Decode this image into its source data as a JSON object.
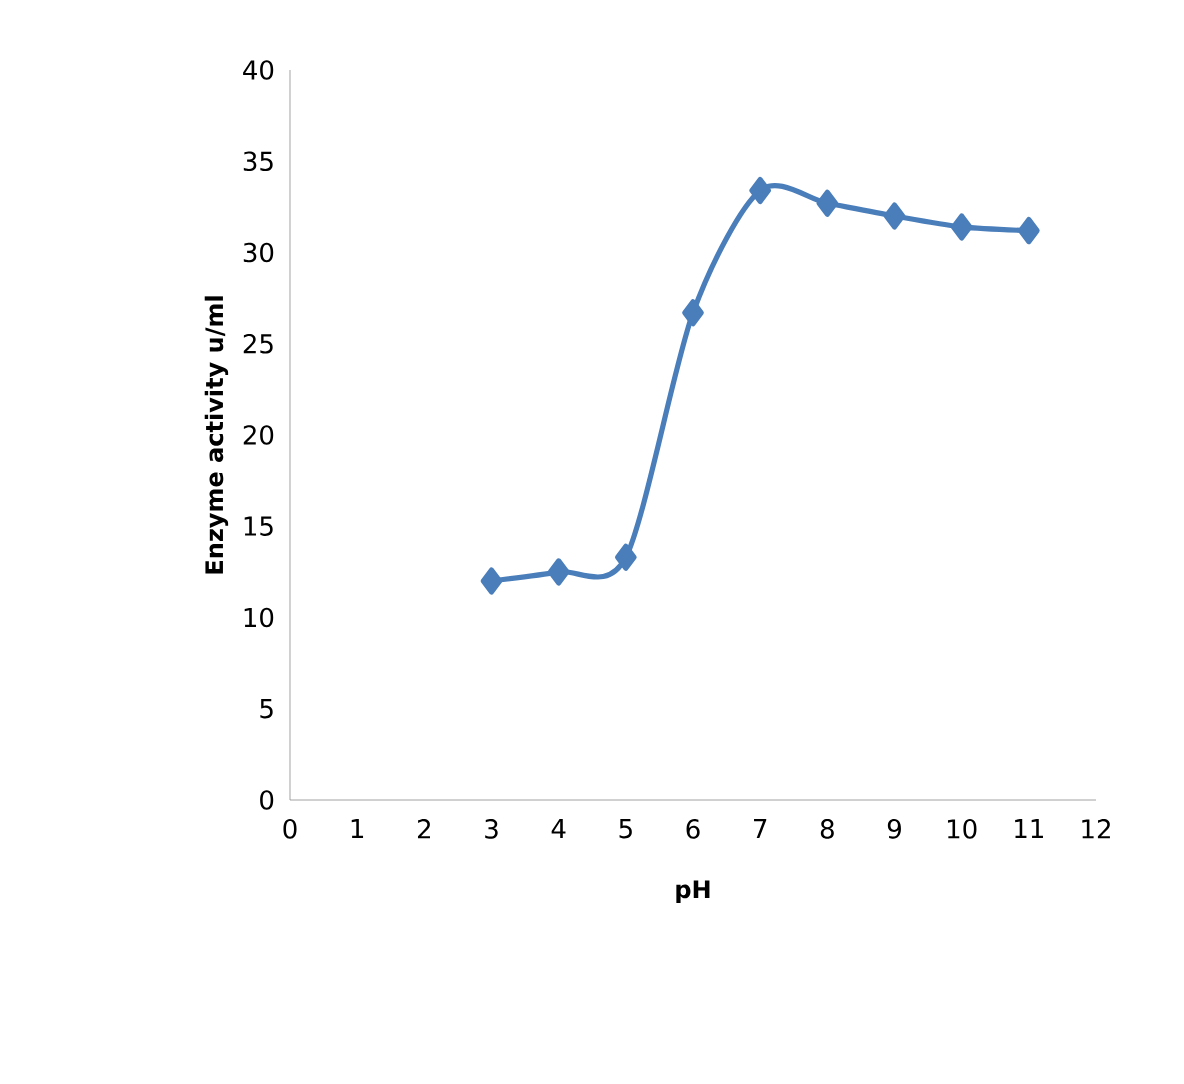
{
  "chart_data": {
    "type": "line",
    "xlabel": "pH",
    "ylabel": "Enzyme activity u/ml",
    "x": [
      3,
      4,
      5,
      6,
      7,
      8,
      9,
      10,
      11
    ],
    "series": [
      {
        "color": "#4a7ebb",
        "values": [
          12.0,
          12.5,
          13.3,
          26.7,
          33.4,
          32.7,
          32.0,
          31.4,
          31.2
        ]
      }
    ],
    "xlim": [
      0,
      12
    ],
    "xticks": [
      0,
      1,
      2,
      3,
      4,
      5,
      6,
      7,
      8,
      9,
      10,
      11,
      12
    ],
    "ylim": [
      0,
      40
    ],
    "yticks": [
      0,
      5,
      10,
      15,
      20,
      25,
      30,
      35,
      40
    ],
    "marker": "diamond",
    "line_style": "solid",
    "grid": false
  }
}
